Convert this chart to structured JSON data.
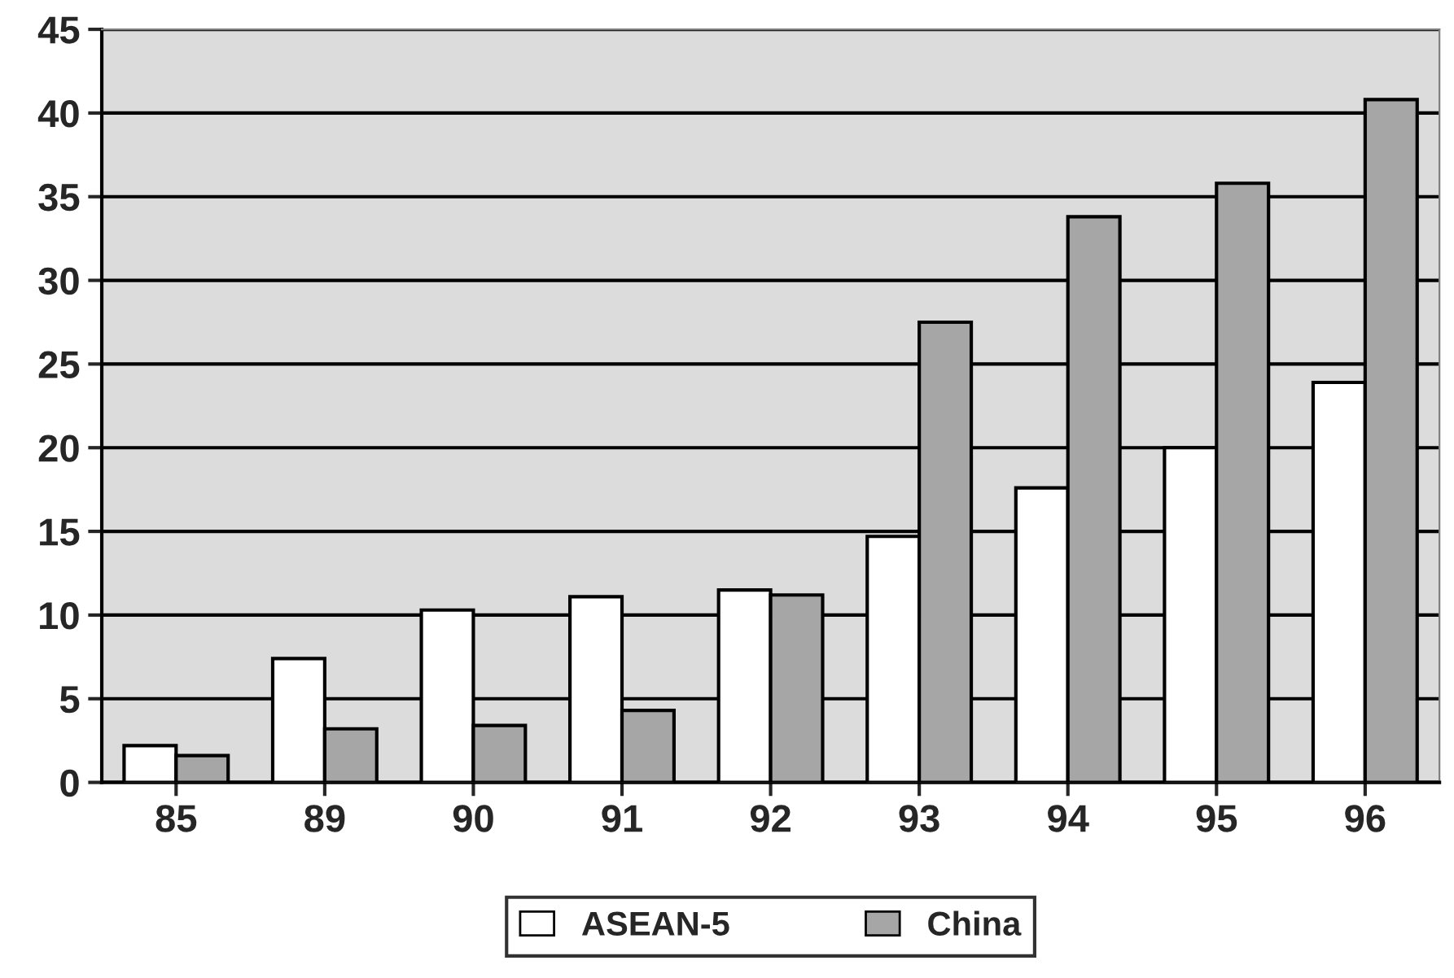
{
  "chart_data": {
    "type": "bar",
    "categories": [
      "85",
      "89",
      "90",
      "91",
      "92",
      "93",
      "94",
      "95",
      "96"
    ],
    "series": [
      {
        "name": "ASEAN-5",
        "color": "#ffffff",
        "values": [
          2.2,
          7.4,
          10.3,
          11.1,
          11.5,
          14.7,
          17.6,
          20.0,
          23.9
        ]
      },
      {
        "name": "China",
        "color": "#a6a6a6",
        "values": [
          1.6,
          3.2,
          3.4,
          4.3,
          11.2,
          27.5,
          33.8,
          35.8,
          40.8
        ]
      }
    ],
    "ylim": [
      0,
      45
    ],
    "yticks": [
      0,
      5,
      10,
      15,
      20,
      25,
      30,
      35,
      40,
      45
    ],
    "grid": "y",
    "legend": "bottom"
  }
}
